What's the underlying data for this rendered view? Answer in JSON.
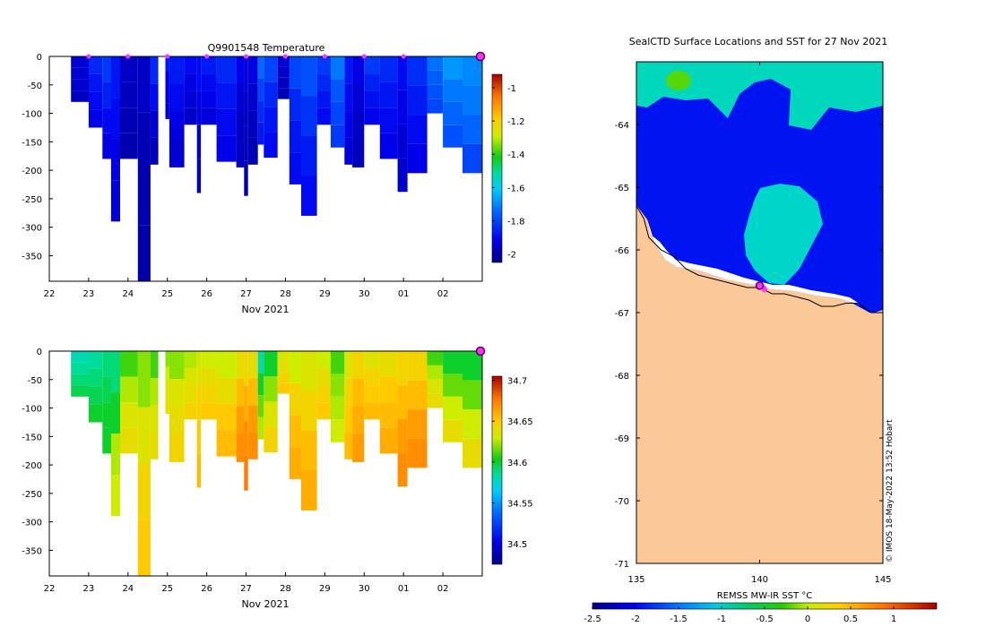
{
  "colors": {
    "ocean_sst": "#0066ee",
    "land": "#fbc898",
    "coast": "#000000",
    "marker": "#ff33ff",
    "marker_edge": "#550055"
  },
  "chart_data": [
    {
      "type": "heatmap",
      "id": "temperature_section",
      "title": "Q9901548  Temperature",
      "xlabel": "Nov 2021",
      "ylabel": "",
      "x_ticks": [
        "22",
        "23",
        "24",
        "25",
        "26",
        "27",
        "28",
        "29",
        "30",
        "01",
        "02"
      ],
      "xlim": [
        22,
        33
      ],
      "y_ticks": [
        "0",
        "-50",
        "-100",
        "-150",
        "-200",
        "-250",
        "-300",
        "-350"
      ],
      "y_tick_values": [
        0,
        -50,
        -100,
        -150,
        -200,
        -250,
        -300,
        -350
      ],
      "ylim": [
        -395,
        0
      ],
      "colorbar": {
        "ticks": [
          "-1",
          "-1.2",
          "-1.4",
          "-1.6",
          "-1.8",
          "-2"
        ],
        "tick_values": [
          -1,
          -1.2,
          -1.4,
          -1.6,
          -1.8,
          -2
        ],
        "range": [
          -2.05,
          -0.92
        ]
      },
      "profiles": [
        {
          "t": 22.55,
          "w": 0.45,
          "depth": 80,
          "values": [
            -1.95,
            -1.95,
            -1.96,
            -1.97
          ]
        },
        {
          "t": 23.0,
          "w": 0.35,
          "depth": 125,
          "values": [
            -1.85,
            -1.88,
            -1.9,
            -1.92
          ]
        },
        {
          "t": 23.35,
          "w": 0.22,
          "depth": 180,
          "values": [
            -1.82,
            -1.86,
            -1.9,
            -1.93
          ]
        },
        {
          "t": 23.57,
          "w": 0.23,
          "depth": 290,
          "values": [
            -1.88,
            -1.9,
            -1.93,
            -1.95
          ]
        },
        {
          "t": 23.8,
          "w": 0.45,
          "depth": 180,
          "values": [
            -1.97,
            -1.98,
            -1.99,
            -2.0
          ]
        },
        {
          "t": 24.25,
          "w": 0.32,
          "depth": 395,
          "values": [
            -1.97,
            -1.99,
            -2.0,
            -2.01
          ]
        },
        {
          "t": 24.57,
          "w": 0.2,
          "depth": 190,
          "values": [
            -1.85,
            -1.9,
            -1.95,
            -1.98
          ]
        },
        {
          "t": 24.95,
          "w": 0.1,
          "depth": 110,
          "values": [
            -1.88,
            -1.92,
            -1.95,
            -1.97
          ]
        },
        {
          "t": 25.05,
          "w": 0.38,
          "depth": 195,
          "values": [
            -1.87,
            -1.9,
            -1.93,
            -1.95
          ]
        },
        {
          "t": 25.43,
          "w": 0.32,
          "depth": 120,
          "values": [
            -1.9,
            -1.93,
            -1.95,
            -1.97
          ]
        },
        {
          "t": 25.75,
          "w": 0.1,
          "depth": 240,
          "values": [
            -1.9,
            -1.93,
            -1.95,
            -1.97
          ]
        },
        {
          "t": 25.85,
          "w": 0.4,
          "depth": 120,
          "values": [
            -1.87,
            -1.9,
            -1.92,
            -1.94
          ]
        },
        {
          "t": 26.25,
          "w": 0.5,
          "depth": 185,
          "values": [
            -1.85,
            -1.88,
            -1.9,
            -1.92
          ]
        },
        {
          "t": 26.75,
          "w": 0.2,
          "depth": 195,
          "values": [
            -1.92,
            -1.95,
            -1.97,
            -1.98
          ]
        },
        {
          "t": 26.95,
          "w": 0.1,
          "depth": 245,
          "values": [
            -1.95,
            -1.97,
            -1.98,
            -1.99
          ]
        },
        {
          "t": 27.05,
          "w": 0.25,
          "depth": 190,
          "values": [
            -1.93,
            -1.96,
            -1.98,
            -1.99
          ]
        },
        {
          "t": 27.3,
          "w": 0.15,
          "depth": 155,
          "values": [
            -1.74,
            -1.8,
            -1.84,
            -1.87
          ]
        },
        {
          "t": 27.45,
          "w": 0.35,
          "depth": 178,
          "values": [
            -1.8,
            -1.85,
            -1.88,
            -1.9
          ]
        },
        {
          "t": 27.8,
          "w": 0.3,
          "depth": 75,
          "values": [
            -1.95,
            -1.97,
            -1.98,
            -1.99
          ]
        },
        {
          "t": 28.1,
          "w": 0.3,
          "depth": 225,
          "values": [
            -1.8,
            -1.85,
            -1.88,
            -1.9
          ]
        },
        {
          "t": 28.4,
          "w": 0.4,
          "depth": 280,
          "values": [
            -1.78,
            -1.83,
            -1.87,
            -1.9
          ]
        },
        {
          "t": 28.8,
          "w": 0.35,
          "depth": 120,
          "values": [
            -1.82,
            -1.85,
            -1.88,
            -1.9
          ]
        },
        {
          "t": 29.15,
          "w": 0.35,
          "depth": 160,
          "values": [
            -1.72,
            -1.77,
            -1.8,
            -1.82
          ]
        },
        {
          "t": 29.5,
          "w": 0.2,
          "depth": 190,
          "values": [
            -1.88,
            -1.9,
            -1.92,
            -1.94
          ]
        },
        {
          "t": 29.7,
          "w": 0.3,
          "depth": 195,
          "values": [
            -1.93,
            -1.95,
            -1.97,
            -1.98
          ]
        },
        {
          "t": 30.0,
          "w": 0.4,
          "depth": 120,
          "values": [
            -1.82,
            -1.86,
            -1.89,
            -1.91
          ]
        },
        {
          "t": 30.4,
          "w": 0.45,
          "depth": 180,
          "values": [
            -1.85,
            -1.88,
            -1.9,
            -1.92
          ]
        },
        {
          "t": 30.85,
          "w": 0.25,
          "depth": 238,
          "values": [
            -1.9,
            -1.93,
            -1.95,
            -1.96
          ]
        },
        {
          "t": 31.1,
          "w": 0.5,
          "depth": 205,
          "values": [
            -1.84,
            -1.87,
            -1.9,
            -1.92
          ]
        },
        {
          "t": 31.6,
          "w": 0.4,
          "depth": 100,
          "values": [
            -1.73,
            -1.76,
            -1.78,
            -1.8
          ]
        },
        {
          "t": 32.0,
          "w": 0.5,
          "depth": 160,
          "values": [
            -1.68,
            -1.72,
            -1.75,
            -1.78
          ]
        },
        {
          "t": 32.5,
          "w": 0.5,
          "depth": 205,
          "values": [
            -1.7,
            -1.72,
            -1.75,
            -1.8
          ]
        }
      ],
      "markers_x": [
        23,
        24,
        25,
        26,
        27,
        28,
        29,
        30,
        31
      ],
      "last_marker_x": 33
    },
    {
      "type": "heatmap",
      "id": "salinity_section",
      "title": "",
      "xlabel": "Nov 2021",
      "ylabel": "",
      "x_ticks": [
        "22",
        "23",
        "24",
        "25",
        "26",
        "27",
        "28",
        "29",
        "30",
        "01",
        "02"
      ],
      "xlim": [
        22,
        33
      ],
      "y_ticks": [
        "0",
        "-50",
        "-100",
        "-150",
        "-200",
        "-250",
        "-300",
        "-350"
      ],
      "y_tick_values": [
        0,
        -50,
        -100,
        -150,
        -200,
        -250,
        -300,
        -350
      ],
      "ylim": [
        -395,
        0
      ],
      "colorbar": {
        "ticks": [
          "34.7",
          "34.65",
          "34.6",
          "34.55",
          "34.5"
        ],
        "tick_values": [
          34.7,
          34.65,
          34.6,
          34.55,
          34.5
        ],
        "range": [
          34.475,
          34.705
        ]
      },
      "profiles": [
        {
          "t": 22.55,
          "w": 0.45,
          "depth": 80,
          "values": [
            34.58,
            34.585,
            34.59,
            34.595
          ]
        },
        {
          "t": 23.0,
          "w": 0.35,
          "depth": 125,
          "values": [
            34.585,
            34.59,
            34.595,
            34.6
          ]
        },
        {
          "t": 23.35,
          "w": 0.22,
          "depth": 180,
          "values": [
            34.59,
            34.595,
            34.6,
            34.6
          ]
        },
        {
          "t": 23.57,
          "w": 0.23,
          "depth": 290,
          "values": [
            34.59,
            34.6,
            34.625,
            34.63
          ]
        },
        {
          "t": 23.8,
          "w": 0.45,
          "depth": 180,
          "values": [
            34.61,
            34.625,
            34.635,
            34.64
          ]
        },
        {
          "t": 24.25,
          "w": 0.32,
          "depth": 395,
          "values": [
            34.62,
            34.635,
            34.645,
            34.65
          ]
        },
        {
          "t": 24.57,
          "w": 0.2,
          "depth": 190,
          "values": [
            34.61,
            34.625,
            34.635,
            34.64
          ]
        },
        {
          "t": 24.95,
          "w": 0.1,
          "depth": 110,
          "values": [
            34.62,
            34.63,
            34.635,
            34.64
          ]
        },
        {
          "t": 25.05,
          "w": 0.38,
          "depth": 195,
          "values": [
            34.62,
            34.635,
            34.64,
            34.645
          ]
        },
        {
          "t": 25.43,
          "w": 0.32,
          "depth": 120,
          "values": [
            34.625,
            34.635,
            34.64,
            34.645
          ]
        },
        {
          "t": 25.75,
          "w": 0.1,
          "depth": 240,
          "values": [
            34.635,
            34.645,
            34.65,
            34.655
          ]
        },
        {
          "t": 25.85,
          "w": 0.4,
          "depth": 120,
          "values": [
            34.63,
            34.64,
            34.645,
            34.65
          ]
        },
        {
          "t": 26.25,
          "w": 0.5,
          "depth": 185,
          "values": [
            34.63,
            34.64,
            34.65,
            34.655
          ]
        },
        {
          "t": 26.75,
          "w": 0.2,
          "depth": 195,
          "values": [
            34.64,
            34.655,
            34.665,
            34.67
          ]
        },
        {
          "t": 26.95,
          "w": 0.1,
          "depth": 245,
          "values": [
            34.645,
            34.66,
            34.67,
            34.675
          ]
        },
        {
          "t": 27.05,
          "w": 0.25,
          "depth": 190,
          "values": [
            34.64,
            34.655,
            34.665,
            34.67
          ]
        },
        {
          "t": 27.3,
          "w": 0.15,
          "depth": 155,
          "values": [
            34.58,
            34.6,
            34.615,
            34.625
          ]
        },
        {
          "t": 27.45,
          "w": 0.35,
          "depth": 178,
          "values": [
            34.6,
            34.62,
            34.635,
            34.645
          ]
        },
        {
          "t": 27.8,
          "w": 0.3,
          "depth": 75,
          "values": [
            34.635,
            34.64,
            34.645,
            34.65
          ]
        },
        {
          "t": 28.1,
          "w": 0.3,
          "depth": 225,
          "values": [
            34.63,
            34.645,
            34.655,
            34.66
          ]
        },
        {
          "t": 28.4,
          "w": 0.4,
          "depth": 280,
          "values": [
            34.635,
            34.645,
            34.655,
            34.66
          ]
        },
        {
          "t": 28.8,
          "w": 0.35,
          "depth": 120,
          "values": [
            34.63,
            34.64,
            34.645,
            34.65
          ]
        },
        {
          "t": 29.15,
          "w": 0.35,
          "depth": 160,
          "values": [
            34.61,
            34.62,
            34.625,
            34.63
          ]
        },
        {
          "t": 29.5,
          "w": 0.2,
          "depth": 190,
          "values": [
            34.635,
            34.645,
            34.65,
            34.655
          ]
        },
        {
          "t": 29.7,
          "w": 0.3,
          "depth": 195,
          "values": [
            34.645,
            34.655,
            34.66,
            34.665
          ]
        },
        {
          "t": 30.0,
          "w": 0.4,
          "depth": 120,
          "values": [
            34.635,
            34.645,
            34.65,
            34.655
          ]
        },
        {
          "t": 30.4,
          "w": 0.45,
          "depth": 180,
          "values": [
            34.64,
            34.65,
            34.655,
            34.66
          ]
        },
        {
          "t": 30.85,
          "w": 0.25,
          "depth": 238,
          "values": [
            34.645,
            34.655,
            34.665,
            34.67
          ]
        },
        {
          "t": 31.1,
          "w": 0.5,
          "depth": 205,
          "values": [
            34.645,
            34.655,
            34.665,
            34.67
          ]
        },
        {
          "t": 31.6,
          "w": 0.4,
          "depth": 100,
          "values": [
            34.61,
            34.625,
            34.635,
            34.64
          ]
        },
        {
          "t": 32.0,
          "w": 0.5,
          "depth": 160,
          "values": [
            34.6,
            34.615,
            34.63,
            34.64
          ]
        },
        {
          "t": 32.5,
          "w": 0.5,
          "depth": 205,
          "values": [
            34.6,
            34.615,
            34.63,
            34.64
          ]
        }
      ],
      "markers_x": [],
      "last_marker_x": 33
    },
    {
      "type": "heatmap",
      "id": "sst_map",
      "title": "SealCTD Surface Locations and SST for 27 Nov 2021",
      "xlabel": "",
      "ylabel": "",
      "x_ticks": [
        "135",
        "140",
        "145"
      ],
      "x_tick_values": [
        135,
        140,
        145
      ],
      "xlim": [
        135,
        145
      ],
      "y_ticks": [
        "-64",
        "-65",
        "-66",
        "-67",
        "-68",
        "-69",
        "-70",
        "-71"
      ],
      "y_tick_values": [
        -64,
        -65,
        -66,
        -67,
        -68,
        -69,
        -70,
        -71
      ],
      "ylim": [
        -71,
        -63
      ],
      "colorbar": {
        "label": "REMSS MW-IR SST °C",
        "ticks": [
          "-2.5",
          "-2",
          "-1.5",
          "-1",
          "-0.5",
          "0",
          "0.5",
          "1"
        ],
        "tick_values": [
          -2.5,
          -2,
          -1.5,
          -1,
          -0.5,
          0,
          0.5,
          1
        ],
        "range": [
          -2.5,
          1.5
        ]
      },
      "sst_regions": [
        {
          "name": "open-ocean",
          "sst": -1.9
        },
        {
          "name": "northern-band",
          "sst": -0.7
        },
        {
          "name": "central-warm-patch",
          "sst": -0.75
        },
        {
          "name": "hotspot",
          "sst": -0.1
        }
      ],
      "coastline": [
        [
          135,
          -65.3
        ],
        [
          135.3,
          -65.5
        ],
        [
          135.5,
          -65.8
        ],
        [
          136,
          -66.0
        ],
        [
          136.5,
          -66.1
        ],
        [
          137,
          -66.3
        ],
        [
          137.5,
          -66.4
        ],
        [
          138.5,
          -66.5
        ],
        [
          139.5,
          -66.6
        ],
        [
          140,
          -66.6
        ],
        [
          140.5,
          -66.7
        ],
        [
          141,
          -66.7
        ],
        [
          141.5,
          -66.75
        ],
        [
          142,
          -66.8
        ],
        [
          142.5,
          -66.9
        ],
        [
          143,
          -66.9
        ],
        [
          143.5,
          -66.85
        ],
        [
          144,
          -66.85
        ],
        [
          144.5,
          -67.0
        ],
        [
          145,
          -67.0
        ]
      ],
      "float_position": {
        "lon": 140.0,
        "lat": -66.57
      },
      "seal_positions": [
        {
          "lon": 140.15,
          "lat": -66.6
        },
        {
          "lon": 140.2,
          "lat": -66.63
        }
      ],
      "watermark": "© IMOS 18-May-2022 13:52 Hobart"
    }
  ]
}
